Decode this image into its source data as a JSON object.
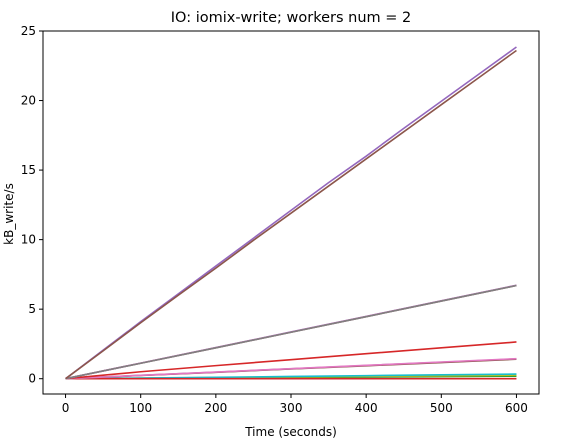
{
  "chart_data": {
    "type": "line",
    "title": "IO: iomix-write; workers num = 2",
    "xlabel": "Time (seconds)",
    "ylabel": "kB_write/s",
    "xlim": [
      -30,
      630
    ],
    "ylim": [
      -1.1,
      25
    ],
    "xticks": [
      0,
      100,
      200,
      300,
      400,
      500,
      600
    ],
    "yticks": [
      0,
      5,
      10,
      15,
      20,
      25
    ],
    "grid": false,
    "legend": false,
    "series": [
      {
        "color": "#2ca02c",
        "x": [
          0,
          100,
          200,
          300,
          400,
          500,
          600
        ],
        "y": [
          0,
          0.03,
          0.06,
          0.09,
          0.12,
          0.15,
          0.18
        ]
      },
      {
        "color": "#bcbd22",
        "x": [
          0,
          100,
          200,
          300,
          400,
          500,
          600
        ],
        "y": [
          0,
          0.04,
          0.08,
          0.13,
          0.17,
          0.21,
          0.26
        ]
      },
      {
        "color": "#17becf",
        "x": [
          0,
          100,
          200,
          300,
          400,
          500,
          600
        ],
        "y": [
          0,
          0.05,
          0.1,
          0.16,
          0.22,
          0.28,
          0.33
        ]
      },
      {
        "color": "#d62728",
        "x": [
          0,
          100,
          200,
          300,
          400,
          500,
          600
        ],
        "y": [
          0,
          0,
          0,
          0,
          0,
          0,
          0
        ]
      },
      {
        "color": "#7f7f7f",
        "x": [
          0,
          100,
          200,
          300,
          400,
          500,
          600
        ],
        "y": [
          0,
          0.24,
          0.47,
          0.71,
          0.95,
          1.18,
          1.42
        ]
      },
      {
        "color": "#8c564b",
        "x": [
          0,
          100,
          200,
          300,
          400,
          500,
          600
        ],
        "y": [
          0,
          0.23,
          0.46,
          0.7,
          0.93,
          1.16,
          1.4
        ]
      },
      {
        "color": "#e377c2",
        "x": [
          0,
          100,
          200,
          300,
          400,
          500,
          600
        ],
        "y": [
          0,
          0.24,
          0.48,
          0.72,
          0.96,
          1.2,
          1.44
        ]
      },
      {
        "color": "#d62728",
        "x": [
          0,
          50,
          100,
          200,
          300,
          400,
          500,
          600
        ],
        "y": [
          0,
          0.25,
          0.5,
          0.94,
          1.37,
          1.8,
          2.22,
          2.64
        ]
      },
      {
        "color": "#9467bd",
        "x": [
          0,
          100,
          200,
          300,
          400,
          500,
          600
        ],
        "y": [
          0,
          1.12,
          2.24,
          3.36,
          4.48,
          5.6,
          6.72
        ]
      },
      {
        "color": "#8c564b",
        "x": [
          0,
          100,
          200,
          300,
          400,
          500,
          600
        ],
        "y": [
          0,
          1.11,
          2.22,
          3.34,
          4.46,
          5.58,
          6.7
        ]
      },
      {
        "color": "#e377c2",
        "x": [
          0,
          100,
          200,
          300,
          400,
          500,
          600
        ],
        "y": [
          0,
          1.12,
          2.23,
          3.35,
          4.47,
          5.59,
          6.71
        ]
      },
      {
        "color": "#7f7f7f",
        "x": [
          0,
          100,
          200,
          300,
          400,
          500,
          600
        ],
        "y": [
          0,
          1.11,
          2.22,
          3.34,
          4.46,
          5.58,
          6.7
        ]
      },
      {
        "color": "#9467bd",
        "x": [
          0,
          50,
          100,
          150,
          200,
          250,
          300,
          350,
          400,
          450,
          500,
          550,
          600
        ],
        "y": [
          0,
          2.05,
          4.1,
          6.1,
          8.1,
          10.1,
          12.1,
          14.1,
          16.0,
          18.0,
          19.95,
          21.9,
          23.85
        ]
      },
      {
        "color": "#8c564b",
        "x": [
          0,
          50,
          100,
          150,
          200,
          250,
          300,
          350,
          400,
          450,
          500,
          550,
          600
        ],
        "y": [
          0,
          2.0,
          4.02,
          6.0,
          7.95,
          9.95,
          11.9,
          13.85,
          15.8,
          17.75,
          19.7,
          21.65,
          23.6
        ]
      }
    ]
  }
}
